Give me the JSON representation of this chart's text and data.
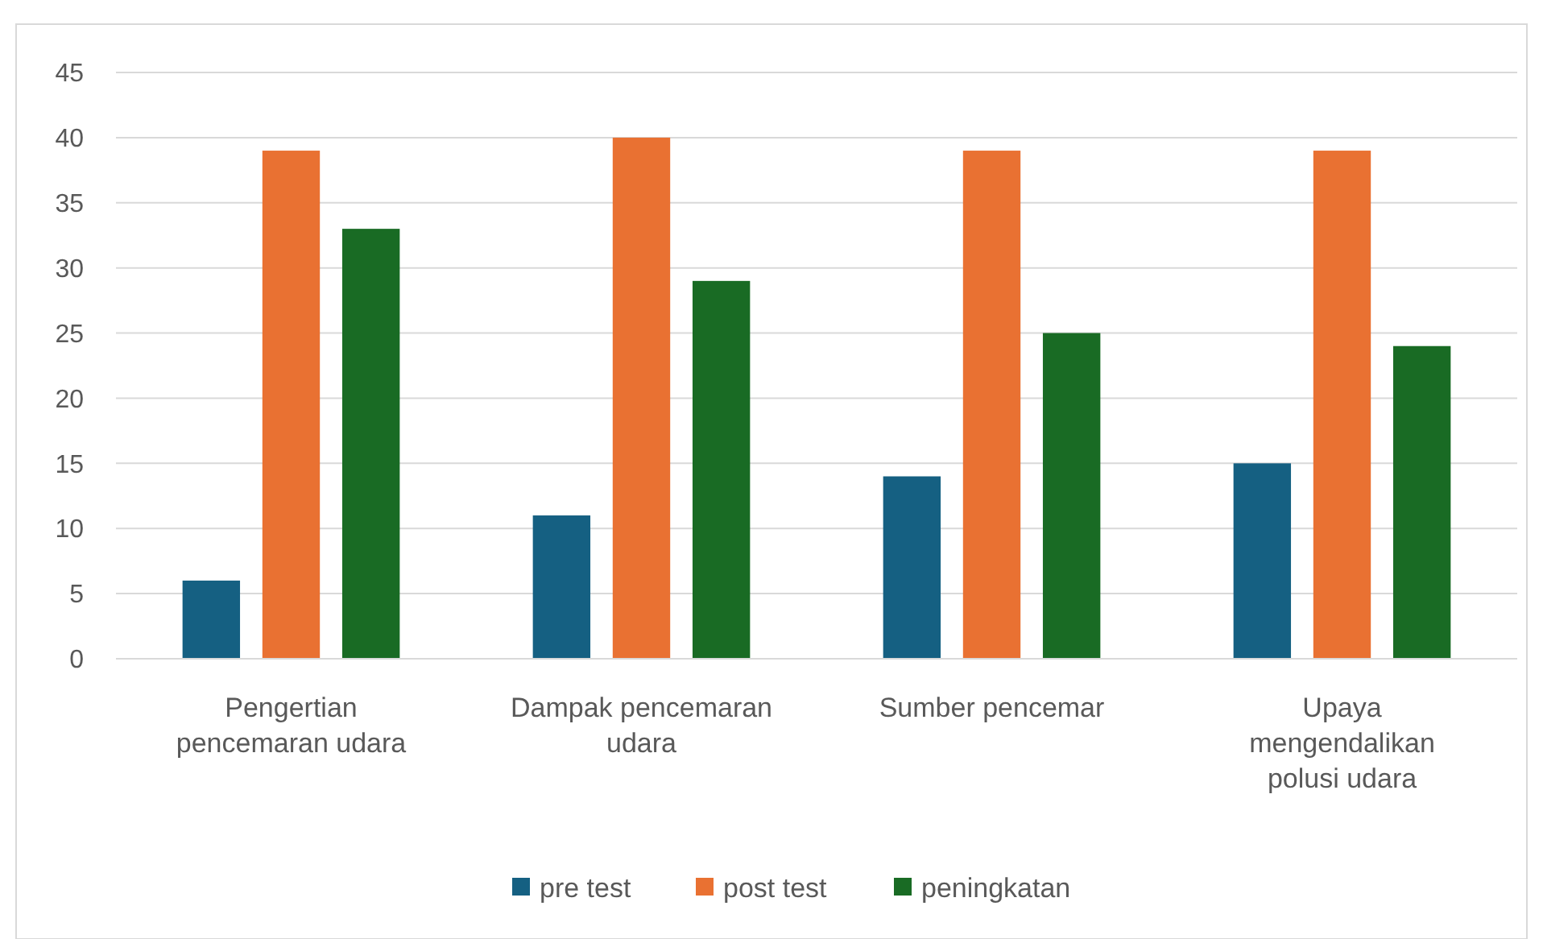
{
  "chart_data": {
    "type": "bar",
    "categories": [
      "Pengertian pencemaran udara",
      "Dampak pencemaran udara",
      "Sumber pencemar",
      "Upaya mengendalikan polusi udara"
    ],
    "series": [
      {
        "name": "pre test",
        "color": "#156082",
        "values": [
          6,
          11,
          14,
          15
        ]
      },
      {
        "name": "post test",
        "color": "#e97132",
        "values": [
          39,
          40,
          39,
          39
        ]
      },
      {
        "name": "peningkatan",
        "color": "#196b24",
        "values": [
          33,
          29,
          25,
          24
        ]
      }
    ],
    "ylim": [
      0,
      45
    ],
    "yticks": [
      0,
      5,
      10,
      15,
      20,
      25,
      30,
      35,
      40,
      45
    ],
    "grid": "y",
    "legend": "bottom"
  }
}
